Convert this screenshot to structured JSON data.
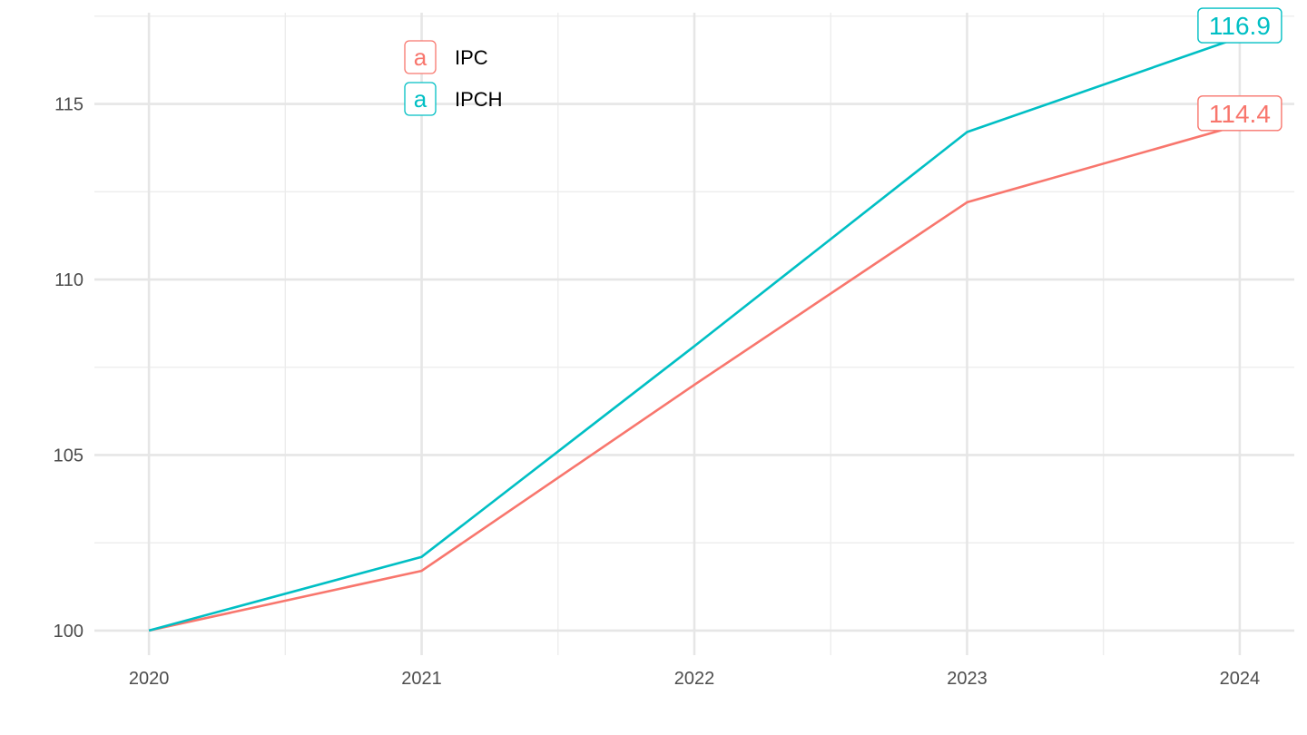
{
  "chart_data": {
    "type": "line",
    "title": "",
    "xlabel": "",
    "ylabel": "",
    "x": [
      2020,
      2021,
      2022,
      2023,
      2024
    ],
    "x_tick_labels": [
      "2020",
      "2021",
      "2022",
      "2023",
      "2024"
    ],
    "xlim": [
      2019.8,
      2024.2
    ],
    "y_ticks": [
      100,
      105,
      110,
      115
    ],
    "y_tick_labels": [
      "100",
      "105",
      "110",
      "115"
    ],
    "ylim": [
      99.3,
      117.6
    ],
    "grid": true,
    "legend": {
      "position": "top-left",
      "key_glyph": "a",
      "entries": [
        "IPC",
        "IPCH"
      ]
    },
    "series": [
      {
        "name": "IPC",
        "color": "#F8766D",
        "values": [
          100.0,
          101.7,
          107.0,
          112.2,
          114.4
        ],
        "end_label": "114.4"
      },
      {
        "name": "IPCH",
        "color": "#00BFC4",
        "values": [
          100.0,
          102.1,
          108.1,
          114.2,
          116.9
        ],
        "end_label": "116.9"
      }
    ]
  }
}
